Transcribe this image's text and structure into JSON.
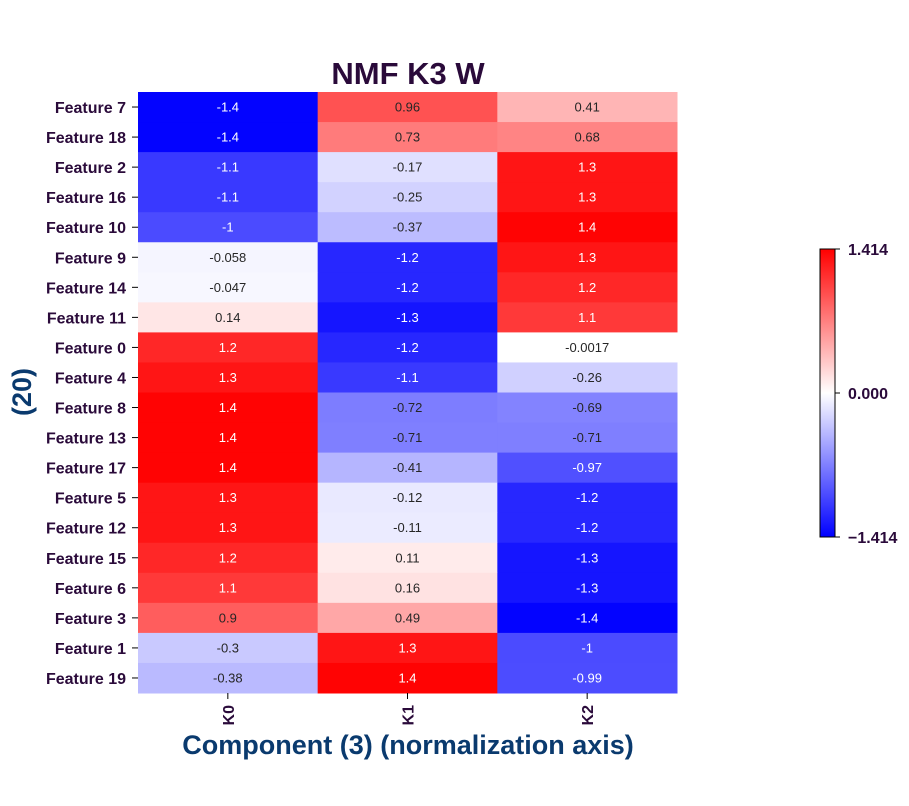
{
  "chart_data": {
    "type": "heatmap",
    "title": "NMF K3 W",
    "xlabel": "Component (3) (normalization axis)",
    "ylabel": "(20)",
    "columns": [
      "K0",
      "K1",
      "K2"
    ],
    "rows": [
      "Feature 7",
      "Feature 18",
      "Feature 2",
      "Feature 16",
      "Feature 10",
      "Feature 9",
      "Feature 14",
      "Feature 11",
      "Feature 0",
      "Feature 4",
      "Feature 8",
      "Feature 13",
      "Feature 17",
      "Feature 5",
      "Feature 12",
      "Feature 15",
      "Feature 6",
      "Feature 3",
      "Feature 1",
      "Feature 19"
    ],
    "values": [
      [
        -1.4,
        0.96,
        0.41
      ],
      [
        -1.4,
        0.73,
        0.68
      ],
      [
        -1.1,
        -0.17,
        1.3
      ],
      [
        -1.1,
        -0.25,
        1.3
      ],
      [
        -1,
        -0.37,
        1.4
      ],
      [
        -0.058,
        -1.2,
        1.3
      ],
      [
        -0.047,
        -1.2,
        1.2
      ],
      [
        0.14,
        -1.3,
        1.1
      ],
      [
        1.2,
        -1.2,
        -0.0017
      ],
      [
        1.3,
        -1.1,
        -0.26
      ],
      [
        1.4,
        -0.72,
        -0.69
      ],
      [
        1.4,
        -0.71,
        -0.71
      ],
      [
        1.4,
        -0.41,
        -0.97
      ],
      [
        1.3,
        -0.12,
        -1.2
      ],
      [
        1.3,
        -0.11,
        -1.2
      ],
      [
        1.2,
        0.11,
        -1.3
      ],
      [
        1.1,
        0.16,
        -1.3
      ],
      [
        0.9,
        0.49,
        -1.4
      ],
      [
        -0.3,
        1.3,
        -1
      ],
      [
        -0.38,
        1.4,
        -0.99
      ]
    ],
    "colormap": "bwr",
    "vmin": -1.414,
    "vmax": 1.414,
    "colorbar_ticks": [
      "1.414",
      "0.000",
      "−1.414"
    ]
  }
}
